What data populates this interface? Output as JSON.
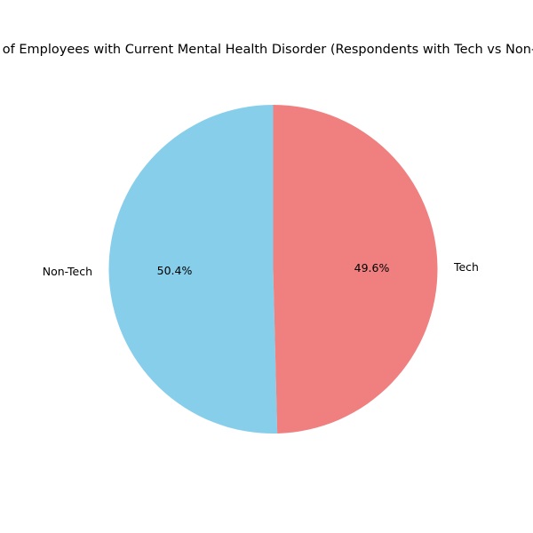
{
  "chart_data": {
    "type": "pie",
    "title": "Percentage of Employees with Current Mental Health Disorder (Respondents with Tech vs Non-Tech Roles)",
    "start_angle_deg": 90,
    "direction": "counterclockwise",
    "slices": [
      {
        "label": "Non-Tech",
        "value": 50.4,
        "pct_label": "50.4%",
        "color": "#87CEEB"
      },
      {
        "label": "Tech",
        "value": 49.6,
        "pct_label": "49.6%",
        "color": "#F08080"
      }
    ]
  }
}
